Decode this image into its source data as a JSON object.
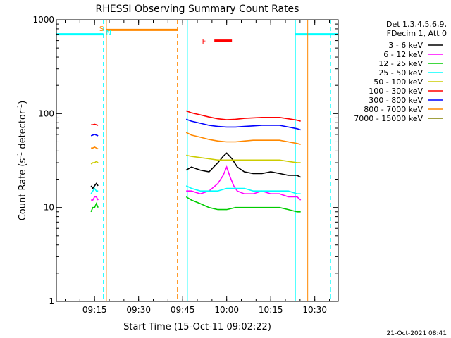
{
  "chart_data": {
    "type": "line",
    "title": "RHESSI Observing Summary Count Rates",
    "xlabel": "Start Time (15-Oct-11 09:02:22)",
    "ylabel_main": "Count Rate (s",
    "ylabel_sup1": "-1",
    "ylabel_mid": " detector",
    "ylabel_sup2": "-1",
    "ylabel_end": ")",
    "yscale": "log",
    "ylim": [
      1,
      1000
    ],
    "xlim": [
      9.0333,
      10.6333
    ],
    "x_unit": "hours",
    "x_ticks": [
      {
        "value": 9.25,
        "label": "09:15"
      },
      {
        "value": 9.5,
        "label": "09:30"
      },
      {
        "value": 9.75,
        "label": "09:45"
      },
      {
        "value": 10.0,
        "label": "10:00"
      },
      {
        "value": 10.25,
        "label": "10:15"
      },
      {
        "value": 10.5,
        "label": "10:30"
      }
    ],
    "y_ticks": [
      {
        "value": 1,
        "label": "1"
      },
      {
        "value": 10,
        "label": "10"
      },
      {
        "value": 100,
        "label": "100"
      },
      {
        "value": 1000,
        "label": "1000"
      }
    ],
    "legend_header": [
      "Det 1,3,4,5,6,9,",
      "FDecim 1, Att 0"
    ],
    "legend_placement": "right",
    "timestamp": "21-Oct-2021 08:41",
    "flags": [
      {
        "label": "S",
        "color": "#ff8800",
        "x": 9.317
      },
      {
        "label": "N",
        "color": "#00ffff",
        "x": 9.303
      },
      {
        "label": "F",
        "color": "#ff0000",
        "x": 9.9
      }
    ],
    "night_bars": [
      {
        "x0": 9.033,
        "x1": 9.3,
        "y": 700,
        "color": "#00ffff"
      },
      {
        "x0": 9.317,
        "x1": 9.72,
        "y": 780,
        "color": "#ff8800"
      },
      {
        "x0": 10.39,
        "x1": 10.63,
        "y": 700,
        "color": "#00ffff"
      }
    ],
    "flare_bar": {
      "x0": 9.93,
      "x1": 10.03,
      "y": 600,
      "color": "#ff0000"
    },
    "vlines": [
      {
        "x": 9.3,
        "color": "#00ffff",
        "dashed": true
      },
      {
        "x": 9.317,
        "color": "#ff8800",
        "dashed": false
      },
      {
        "x": 9.72,
        "color": "#ff8800",
        "dashed": true
      },
      {
        "x": 9.777,
        "color": "#00ffff",
        "dashed": false
      },
      {
        "x": 10.39,
        "color": "#00ffff",
        "dashed": false
      },
      {
        "x": 10.46,
        "color": "#ff8800",
        "dashed": false
      },
      {
        "x": 10.59,
        "color": "#00ffff",
        "dashed": true
      }
    ],
    "series": [
      {
        "name": "3 - 6 keV",
        "color": "#000000",
        "segments": [
          {
            "x": [
              9.23,
              9.24,
              9.25,
              9.26,
              9.27
            ],
            "y": [
              17,
              16,
              17,
              18,
              17
            ]
          },
          {
            "x": [
              9.77,
              9.8,
              9.85,
              9.9,
              9.95,
              9.98,
              10.0,
              10.03,
              10.06,
              10.1,
              10.15,
              10.2,
              10.25,
              10.3,
              10.35,
              10.4,
              10.42
            ],
            "y": [
              25,
              27,
              25,
              24,
              30,
              35,
              38,
              33,
              27,
              24,
              23,
              23,
              24,
              23,
              22,
              22,
              21
            ]
          }
        ]
      },
      {
        "name": "6 - 12 keV",
        "color": "#ff00ff",
        "segments": [
          {
            "x": [
              9.23,
              9.24,
              9.25,
              9.26,
              9.27
            ],
            "y": [
              12,
              12,
              13,
              13,
              12
            ]
          },
          {
            "x": [
              9.77,
              9.8,
              9.85,
              9.9,
              9.95,
              9.98,
              10.0,
              10.02,
              10.04,
              10.06,
              10.1,
              10.15,
              10.2,
              10.25,
              10.3,
              10.35,
              10.4,
              10.42
            ],
            "y": [
              15,
              15,
              14,
              15,
              18,
              22,
              27,
              21,
              17,
              15,
              14,
              14,
              15,
              14,
              14,
              13,
              13,
              12
            ]
          }
        ]
      },
      {
        "name": "12 - 25 keV",
        "color": "#00cc00",
        "segments": [
          {
            "x": [
              9.23,
              9.24,
              9.25,
              9.26,
              9.27
            ],
            "y": [
              9,
              10,
              10,
              11,
              10
            ]
          },
          {
            "x": [
              9.77,
              9.8,
              9.85,
              9.9,
              9.95,
              10.0,
              10.05,
              10.1,
              10.15,
              10.2,
              10.25,
              10.3,
              10.35,
              10.4,
              10.42
            ],
            "y": [
              13,
              12,
              11,
              10,
              9.5,
              9.5,
              10,
              10,
              10,
              10,
              10,
              10,
              9.5,
              9,
              9
            ]
          }
        ]
      },
      {
        "name": "25 - 50 keV",
        "color": "#00ffff",
        "segments": [
          {
            "x": [
              9.23,
              9.24,
              9.25,
              9.26,
              9.27
            ],
            "y": [
              14,
              15,
              16,
              15,
              15
            ]
          },
          {
            "x": [
              9.77,
              9.8,
              9.85,
              9.9,
              9.95,
              10.0,
              10.05,
              10.1,
              10.15,
              10.2,
              10.25,
              10.3,
              10.35,
              10.4,
              10.42
            ],
            "y": [
              17,
              16,
              15,
              15,
              15,
              16,
              16,
              16,
              15,
              15,
              15,
              15,
              15,
              14,
              14
            ]
          }
        ]
      },
      {
        "name": "50 - 100 keV",
        "color": "#cccc00",
        "segments": [
          {
            "x": [
              9.23,
              9.24,
              9.25,
              9.26,
              9.27
            ],
            "y": [
              29,
              30,
              30,
              31,
              30
            ]
          },
          {
            "x": [
              9.77,
              9.8,
              9.85,
              9.9,
              9.95,
              10.0,
              10.05,
              10.1,
              10.15,
              10.2,
              10.25,
              10.3,
              10.35,
              10.4,
              10.42
            ],
            "y": [
              36,
              35,
              34,
              33,
              32,
              32,
              32,
              32,
              32,
              32,
              32,
              32,
              31,
              30,
              30
            ]
          }
        ]
      },
      {
        "name": "100 - 300 keV",
        "color": "#ff0000",
        "segments": [
          {
            "x": [
              9.23,
              9.24,
              9.25,
              9.26,
              9.27
            ],
            "y": [
              76,
              76,
              77,
              76,
              75
            ]
          },
          {
            "x": [
              9.77,
              9.8,
              9.85,
              9.9,
              9.95,
              10.0,
              10.05,
              10.1,
              10.15,
              10.2,
              10.25,
              10.3,
              10.35,
              10.4,
              10.42
            ],
            "y": [
              107,
              102,
              97,
              92,
              88,
              86,
              87,
              89,
              90,
              91,
              91,
              91,
              88,
              85,
              83
            ]
          }
        ]
      },
      {
        "name": "300 - 800 keV",
        "color": "#0000ff",
        "segments": [
          {
            "x": [
              9.23,
              9.24,
              9.25,
              9.26,
              9.27
            ],
            "y": [
              58,
              59,
              60,
              59,
              58
            ]
          },
          {
            "x": [
              9.77,
              9.8,
              9.85,
              9.9,
              9.95,
              10.0,
              10.05,
              10.1,
              10.15,
              10.2,
              10.25,
              10.3,
              10.35,
              10.4,
              10.42
            ],
            "y": [
              87,
              83,
              79,
              75,
              73,
              72,
              72,
              73,
              74,
              75,
              75,
              75,
              72,
              69,
              67
            ]
          }
        ]
      },
      {
        "name": "800 - 7000 keV",
        "color": "#ff8800",
        "segments": [
          {
            "x": [
              9.23,
              9.24,
              9.25,
              9.26,
              9.27
            ],
            "y": [
              43,
              43,
              44,
              43,
              42
            ]
          },
          {
            "x": [
              9.77,
              9.8,
              9.85,
              9.9,
              9.95,
              10.0,
              10.05,
              10.1,
              10.15,
              10.2,
              10.25,
              10.3,
              10.35,
              10.4,
              10.42
            ],
            "y": [
              63,
              59,
              56,
              53,
              51,
              50,
              50,
              51,
              52,
              52,
              52,
              52,
              50,
              48,
              47
            ]
          }
        ]
      },
      {
        "name": "7000 - 15000 keV",
        "color": "#808000",
        "segments": []
      }
    ]
  }
}
